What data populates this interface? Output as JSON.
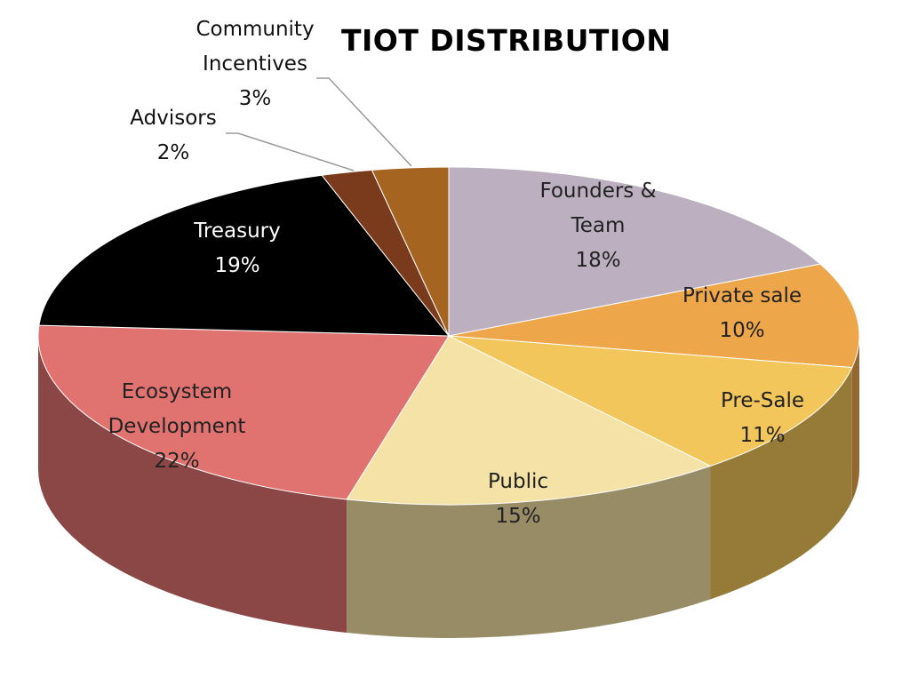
{
  "chart_data": {
    "type": "pie",
    "title": "TIOT DISTRIBUTION",
    "style": "3d-exploded-none",
    "slices": [
      {
        "label": "Founders & Team",
        "lines": [
          "Founders &",
          "Team"
        ],
        "percent": "18%",
        "value": 18,
        "color": "#bcb0c0",
        "label_color": "#222222"
      },
      {
        "label": "Private sale",
        "lines": [
          "Private sale"
        ],
        "percent": "10%",
        "value": 10,
        "color": "#eda64a",
        "label_color": "#222222"
      },
      {
        "label": "Pre-Sale",
        "lines": [
          "Pre-Sale"
        ],
        "percent": "11%",
        "value": 11,
        "color": "#f2c65a",
        "label_color": "#222222"
      },
      {
        "label": "Public",
        "lines": [
          "Public"
        ],
        "percent": "15%",
        "value": 15,
        "color": "#f5e2a6",
        "label_color": "#222222"
      },
      {
        "label": "Ecosystem Development",
        "lines": [
          "Ecosystem",
          "Development"
        ],
        "percent": "22%",
        "value": 22,
        "color": "#e07370",
        "label_color": "#222222"
      },
      {
        "label": "Treasury",
        "lines": [
          "Treasury"
        ],
        "percent": "19%",
        "value": 19,
        "color": "#000000",
        "label_color": "#ffffff"
      },
      {
        "label": "Advisors",
        "lines": [
          "Advisors"
        ],
        "percent": "2%",
        "value": 2,
        "color": "#7a3a1c",
        "label_color": "#111111"
      },
      {
        "label": "Community Incentives",
        "lines": [
          "Community",
          "Incentives"
        ],
        "percent": "3%",
        "value": 3,
        "color": "#a5641f",
        "label_color": "#111111"
      }
    ]
  }
}
